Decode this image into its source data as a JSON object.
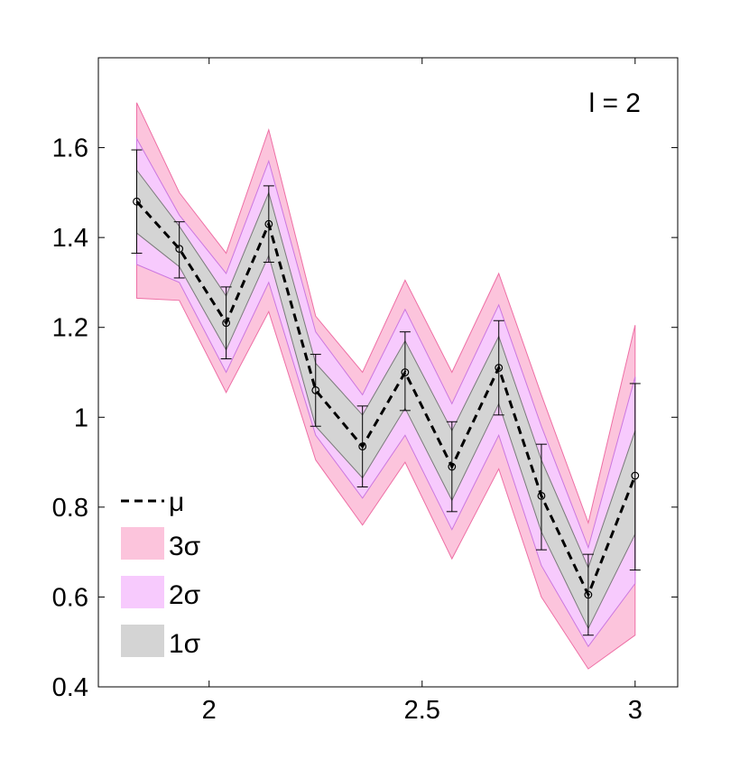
{
  "chart_data": {
    "type": "line",
    "annotation": "l = 2",
    "xlim": [
      1.74,
      3.1
    ],
    "ylim": [
      0.4,
      1.8
    ],
    "xticks": [
      2,
      2.5,
      3
    ],
    "xtick_labels": [
      "2",
      "2.5",
      "3"
    ],
    "yticks": [
      0.4,
      0.6,
      0.8,
      1.0,
      1.2,
      1.4,
      1.6
    ],
    "ytick_labels": [
      "0.4",
      "0.6",
      "0.8",
      "1",
      "1.2",
      "1.4",
      "1.6"
    ],
    "grid": false,
    "legend_position": "bottom-left",
    "x": [
      1.83,
      1.93,
      2.04,
      2.14,
      2.25,
      2.36,
      2.46,
      2.57,
      2.68,
      2.78,
      2.89,
      3.0
    ],
    "mean": [
      1.48,
      1.375,
      1.21,
      1.43,
      1.06,
      0.935,
      1.1,
      0.89,
      1.11,
      null,
      0.605,
      null
    ],
    "mean_line": [
      1.48,
      1.375,
      1.21,
      1.43,
      1.06,
      0.935,
      1.1,
      0.89,
      1.11,
      0.825,
      0.605,
      0.87
    ],
    "band_1sigma": {
      "lower": [
        1.41,
        1.335,
        1.15,
        1.36,
        0.98,
        0.865,
        1.02,
        0.815,
        1.03,
        0.745,
        0.53,
        0.74
      ],
      "upper": [
        1.55,
        1.425,
        1.27,
        1.5,
        1.12,
        1.005,
        1.17,
        0.97,
        1.18,
        0.905,
        0.665,
        0.97
      ]
    },
    "band_2sigma": {
      "lower": [
        1.34,
        1.3,
        1.1,
        1.3,
        0.96,
        0.82,
        0.96,
        0.75,
        0.96,
        0.67,
        0.49,
        0.63
      ],
      "upper": [
        1.62,
        1.45,
        1.32,
        1.57,
        1.19,
        1.05,
        1.24,
        1.03,
        1.25,
        0.98,
        0.71,
        1.09
      ]
    },
    "band_3sigma": {
      "lower": [
        1.265,
        1.26,
        1.055,
        1.235,
        0.905,
        0.76,
        0.9,
        0.685,
        0.885,
        0.6,
        0.44,
        0.515
      ],
      "upper": [
        1.7,
        1.5,
        1.365,
        1.64,
        1.225,
        1.1,
        1.305,
        1.1,
        1.32,
        1.05,
        0.765,
        1.205
      ]
    },
    "observations": {
      "x": [
        1.83,
        1.93,
        2.04,
        2.14,
        2.25,
        2.36,
        2.46,
        2.57,
        2.68,
        2.78,
        2.89,
        3.0
      ],
      "y": [
        1.48,
        1.375,
        1.21,
        1.43,
        1.06,
        0.935,
        1.1,
        0.89,
        1.11,
        0.825,
        0.605,
        0.87
      ],
      "err_low": [
        1.365,
        1.31,
        1.13,
        1.345,
        0.98,
        0.845,
        1.015,
        0.79,
        1.005,
        0.705,
        0.515,
        0.66
      ],
      "err_high": [
        1.595,
        1.435,
        1.29,
        1.515,
        1.14,
        1.025,
        1.19,
        0.99,
        1.215,
        0.94,
        0.695,
        1.075
      ]
    },
    "legend": [
      {
        "label": "μ",
        "style": "dashed-line"
      },
      {
        "label": "3σ",
        "color": "#fcc4dc"
      },
      {
        "label": "2σ",
        "color": "#f7cafd"
      },
      {
        "label": "1σ",
        "color": "#d4d4d4"
      }
    ],
    "colors": {
      "band3_fill": "#fcc4dc",
      "band3_edge": "#ee6fa5",
      "band2_fill": "#f7cafd",
      "band2_edge": "#cc77e0",
      "band1_fill": "#d4d4d4",
      "band1_edge": "#7a7a7a",
      "mean_line": "#000000",
      "errorbar": "#000000"
    }
  }
}
